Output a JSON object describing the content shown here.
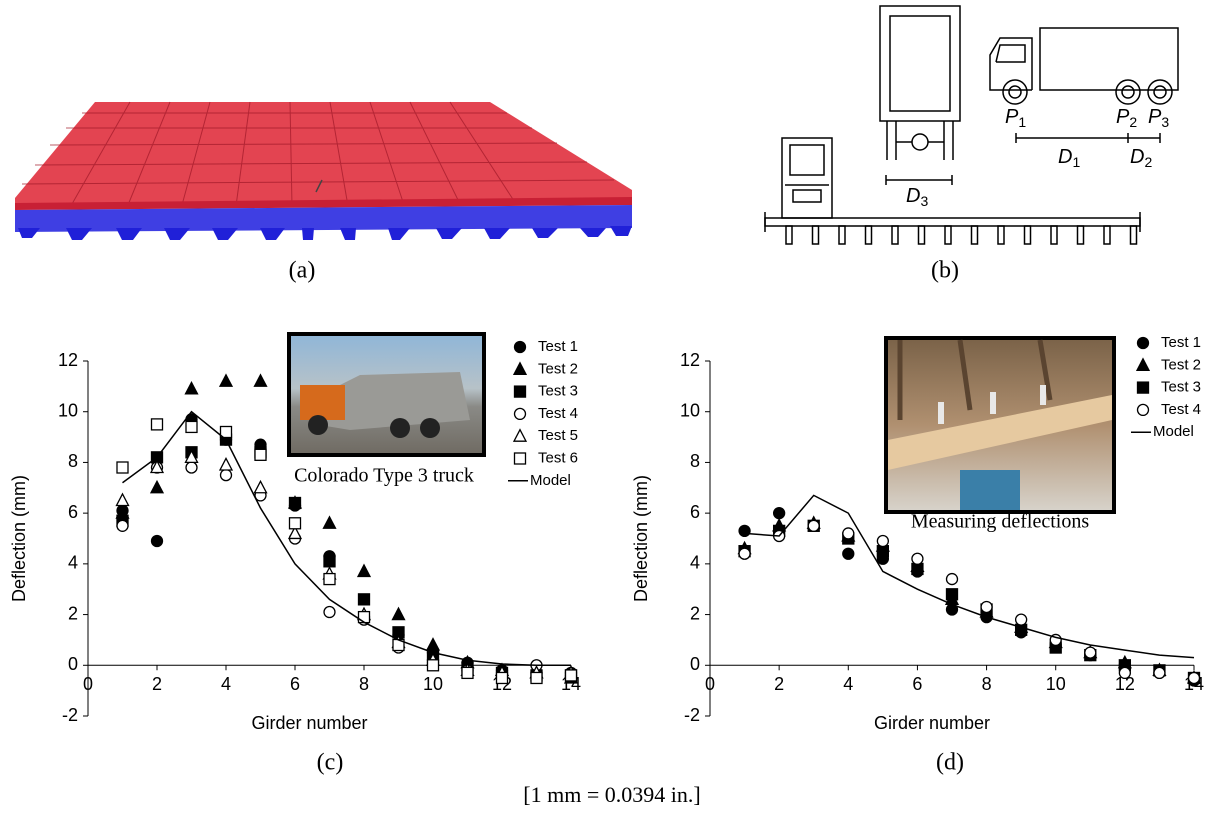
{
  "panel_a": {
    "caption": "(a)"
  },
  "panel_b": {
    "caption": "(b)",
    "labels": [
      {
        "main": "P",
        "sub": "1"
      },
      {
        "main": "P",
        "sub": "2"
      },
      {
        "main": "P",
        "sub": "3"
      },
      {
        "main": "D",
        "sub": "1"
      },
      {
        "main": "D",
        "sub": "2"
      },
      {
        "main": "D",
        "sub": "3"
      }
    ]
  },
  "note": "[1 mm = 0.0394 in.]",
  "chart_data": [
    {
      "type": "scatter",
      "caption": "(c)",
      "annotation": "Colorado Type 3 truck",
      "x_label": "Girder number",
      "y_label": "Deflection (mm)",
      "xlim": [
        0,
        14
      ],
      "ylim": [
        -2,
        12
      ],
      "xticks": [
        0,
        2,
        4,
        6,
        8,
        10,
        12,
        14
      ],
      "yticks": [
        -2,
        0,
        2,
        4,
        6,
        8,
        10,
        12
      ],
      "legend": "upper right",
      "x": [
        1,
        2,
        3,
        4,
        5,
        6,
        7,
        8,
        9,
        10,
        11,
        12,
        13,
        14
      ],
      "series": [
        {
          "name": "Test 1",
          "marker": "circle-filled",
          "color": "#000000",
          "values": [
            6.1,
            4.9,
            9.7,
            8.9,
            8.7,
            6.3,
            4.3,
            1.9,
            1.2,
            0.5,
            0.1,
            -0.2,
            -0.3,
            -0.3
          ]
        },
        {
          "name": "Test 2",
          "marker": "triangle-filled",
          "color": "#000000",
          "values": [
            6.0,
            7.0,
            10.9,
            11.2,
            11.2,
            6.4,
            5.6,
            3.7,
            2.0,
            0.8,
            0.1,
            -0.2,
            -0.3,
            -0.5
          ]
        },
        {
          "name": "Test 3",
          "marker": "square-filled",
          "color": "#000000",
          "values": [
            5.7,
            8.2,
            8.4,
            8.9,
            8.4,
            6.4,
            4.1,
            2.6,
            1.3,
            0.4,
            -0.1,
            -0.3,
            -0.4,
            -0.4
          ]
        },
        {
          "name": "Test 4",
          "marker": "circle-open",
          "color": "#000000",
          "values": [
            5.5,
            7.8,
            7.8,
            7.5,
            6.7,
            5.0,
            2.1,
            1.8,
            0.7,
            0.1,
            -0.2,
            -0.4,
            0.0,
            -0.4
          ]
        },
        {
          "name": "Test 5",
          "marker": "triangle-open",
          "color": "#000000",
          "values": [
            6.5,
            7.8,
            8.2,
            7.9,
            7.0,
            5.2,
            3.6,
            2.0,
            0.9,
            0.2,
            -0.2,
            -0.3,
            -0.3,
            -0.3
          ]
        },
        {
          "name": "Test 6",
          "marker": "square-open",
          "color": "#000000",
          "values": [
            7.8,
            9.5,
            9.4,
            9.2,
            8.3,
            5.6,
            3.4,
            1.9,
            0.8,
            0.0,
            -0.3,
            -0.5,
            -0.5,
            -0.4
          ]
        },
        {
          "name": "Model",
          "marker": "line",
          "color": "#000000",
          "values": [
            7.2,
            8.2,
            10.0,
            8.9,
            6.2,
            4.0,
            2.6,
            1.7,
            1.0,
            0.5,
            0.2,
            0.05,
            0.0,
            0.0
          ]
        }
      ]
    },
    {
      "type": "scatter",
      "caption": "(d)",
      "annotation": "Measuring deflections",
      "x_label": "Girder number",
      "y_label": "Deflection (mm)",
      "xlim": [
        0,
        14
      ],
      "ylim": [
        -2,
        12
      ],
      "xticks": [
        0,
        2,
        4,
        6,
        8,
        10,
        12,
        14
      ],
      "yticks": [
        -2,
        0,
        2,
        4,
        6,
        8,
        10,
        12
      ],
      "legend": "upper right",
      "x": [
        1,
        2,
        3,
        4,
        5,
        6,
        7,
        8,
        9,
        10,
        11,
        12,
        13,
        14
      ],
      "series": [
        {
          "name": "Test 1",
          "marker": "circle-filled",
          "color": "#000000",
          "values": [
            5.3,
            6.0,
            5.5,
            4.4,
            4.2,
            3.7,
            2.2,
            1.9,
            1.3,
            0.8,
            0.4,
            0.0,
            -0.3,
            -0.6
          ]
        },
        {
          "name": "Test 2",
          "marker": "triangle-filled",
          "color": "#000000",
          "values": [
            4.6,
            5.5,
            5.6,
            5.1,
            4.7,
            3.9,
            2.6,
            2.1,
            1.5,
            0.9,
            0.5,
            0.1,
            -0.2,
            -0.5
          ]
        },
        {
          "name": "Test 3",
          "marker": "square-filled",
          "color": "#000000",
          "values": [
            4.5,
            5.3,
            5.5,
            5.0,
            4.5,
            3.8,
            2.8,
            2.2,
            1.4,
            0.7,
            0.4,
            0.0,
            -0.2,
            -0.5
          ]
        },
        {
          "name": "Test 4",
          "marker": "circle-open",
          "color": "#000000",
          "values": [
            4.4,
            5.1,
            5.5,
            5.2,
            4.9,
            4.2,
            3.4,
            2.3,
            1.8,
            1.0,
            0.5,
            -0.3,
            -0.3,
            -0.5
          ]
        },
        {
          "name": "Model",
          "marker": "line",
          "color": "#000000",
          "values": [
            5.2,
            5.1,
            6.7,
            6.0,
            3.7,
            3.0,
            2.4,
            1.9,
            1.5,
            1.1,
            0.8,
            0.6,
            0.4,
            0.3
          ]
        }
      ]
    }
  ]
}
